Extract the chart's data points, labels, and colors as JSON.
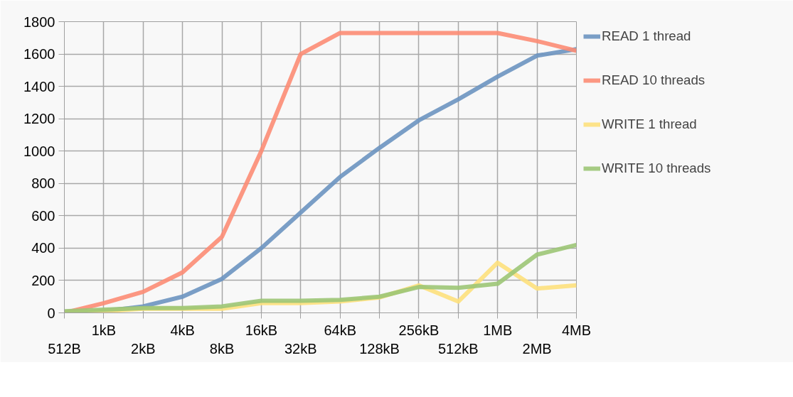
{
  "chart_data": {
    "type": "line",
    "categories": [
      "512B",
      "1kB",
      "2kB",
      "4kB",
      "8kB",
      "16kB",
      "32kB",
      "64kB",
      "128kB",
      "256kB",
      "512kB",
      "1MB",
      "2MB",
      "4MB"
    ],
    "series": [
      {
        "name": "READ 1 thread",
        "color": "#6c93c0",
        "values": [
          0,
          10,
          40,
          100,
          210,
          400,
          620,
          840,
          1020,
          1190,
          1320,
          1460,
          1590,
          1630
        ]
      },
      {
        "name": "READ 10 threads",
        "color": "#fc8c74",
        "values": [
          0,
          60,
          130,
          250,
          470,
          1000,
          1600,
          1730,
          1730,
          1730,
          1730,
          1730,
          1680,
          1620
        ]
      },
      {
        "name": "WRITE 1 thread",
        "color": "#fde07c",
        "values": [
          0,
          10,
          25,
          25,
          25,
          60,
          60,
          70,
          95,
          170,
          70,
          310,
          150,
          170
        ]
      },
      {
        "name": "WRITE 10 threads",
        "color": "#9cc576",
        "values": [
          10,
          20,
          30,
          30,
          40,
          75,
          75,
          80,
          100,
          160,
          155,
          180,
          360,
          420
        ]
      }
    ],
    "ylim": [
      0,
      1800
    ],
    "yticks": [
      0,
      200,
      400,
      600,
      800,
      1000,
      1200,
      1400,
      1600,
      1800
    ],
    "grid": true,
    "legend": "right",
    "marker": "none",
    "line_style": "solid"
  }
}
